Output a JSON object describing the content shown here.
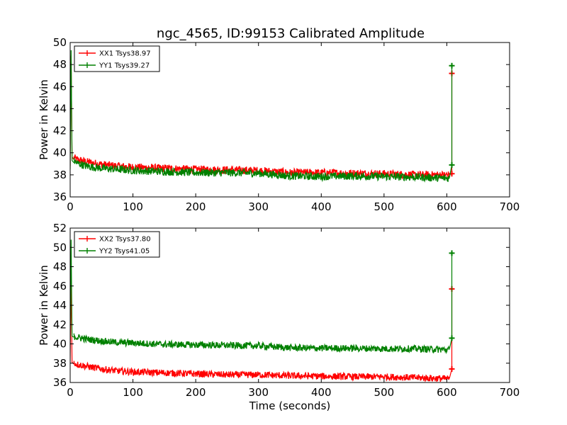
{
  "figure": {
    "title": "ngc_4565, ID:99153 Calibrated Amplitude"
  },
  "chart_data": [
    {
      "type": "line",
      "title": "ngc_4565, ID:99153 Calibrated Amplitude",
      "xlabel": "",
      "ylabel": "Power in Kelvin",
      "xlim": [
        0,
        700
      ],
      "ylim": [
        36,
        50
      ],
      "x_ticks": [
        0,
        100,
        200,
        300,
        400,
        500,
        600,
        700
      ],
      "y_ticks": [
        36,
        38,
        40,
        42,
        44,
        46,
        48,
        50
      ],
      "legend_position": "top-left",
      "series": [
        {
          "name": "XX1 Tsys38.97",
          "color": "#ff0000",
          "x": [
            0,
            2,
            5,
            10,
            25,
            50,
            75,
            100,
            150,
            200,
            250,
            300,
            350,
            400,
            450,
            500,
            550,
            600,
            604
          ],
          "y": [
            38.8,
            48.8,
            39.6,
            39.4,
            39.2,
            38.95,
            38.8,
            38.7,
            38.6,
            38.5,
            38.45,
            38.4,
            38.2,
            38.2,
            38.15,
            38.1,
            38.0,
            38.0,
            38.0
          ],
          "spike": {
            "x": 608,
            "y_low": 38.1,
            "y_high": 47.2
          }
        },
        {
          "name": "YY1 Tsys39.27",
          "color": "#008000",
          "x": [
            0,
            2,
            5,
            10,
            25,
            50,
            75,
            100,
            150,
            200,
            250,
            300,
            350,
            400,
            450,
            500,
            550,
            600,
            604
          ],
          "y": [
            38.5,
            49.3,
            39.3,
            39.1,
            38.8,
            38.6,
            38.5,
            38.4,
            38.3,
            38.2,
            38.2,
            38.15,
            37.9,
            37.85,
            37.9,
            37.85,
            37.8,
            37.7,
            37.7
          ],
          "spike": {
            "x": 608,
            "y_low": 38.9,
            "y_high": 47.9
          }
        }
      ]
    },
    {
      "type": "line",
      "title": "",
      "xlabel": "Time (seconds)",
      "ylabel": "Power in Kelvin",
      "xlim": [
        0,
        700
      ],
      "ylim": [
        36,
        52
      ],
      "x_ticks": [
        0,
        100,
        200,
        300,
        400,
        500,
        600,
        700
      ],
      "y_ticks": [
        36,
        38,
        40,
        42,
        44,
        46,
        48,
        50,
        52
      ],
      "legend_position": "top-left",
      "series": [
        {
          "name": "XX2 Tsys37.80",
          "color": "#ff0000",
          "x": [
            0,
            2,
            5,
            10,
            25,
            50,
            75,
            100,
            150,
            200,
            250,
            300,
            350,
            400,
            450,
            500,
            550,
            600,
            604
          ],
          "y": [
            38.0,
            47.2,
            38.1,
            37.9,
            37.7,
            37.4,
            37.2,
            37.1,
            37.0,
            36.9,
            36.8,
            36.8,
            36.7,
            36.65,
            36.6,
            36.6,
            36.5,
            36.4,
            36.4
          ],
          "spike": {
            "x": 608,
            "y_low": 37.4,
            "y_high": 45.7
          }
        },
        {
          "name": "YY2 Tsys41.05",
          "color": "#008000",
          "x": [
            0,
            2,
            5,
            10,
            25,
            50,
            75,
            100,
            150,
            200,
            250,
            300,
            350,
            400,
            450,
            500,
            550,
            600,
            604
          ],
          "y": [
            40.9,
            50.8,
            40.8,
            40.7,
            40.5,
            40.3,
            40.15,
            40.1,
            39.95,
            39.9,
            39.85,
            39.8,
            39.6,
            39.55,
            39.55,
            39.5,
            39.5,
            39.4,
            39.4
          ],
          "spike": {
            "x": 608,
            "y_low": 40.6,
            "y_high": 49.4
          }
        }
      ]
    }
  ]
}
